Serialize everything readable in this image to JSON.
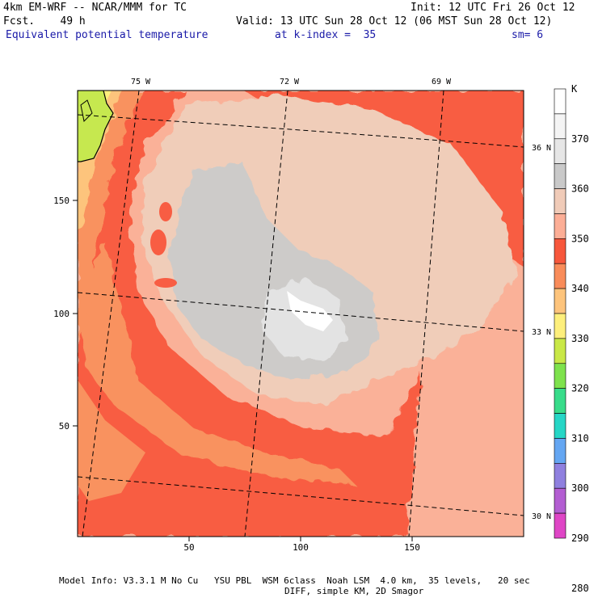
{
  "header": {
    "model_line": "4km EM-WRF -- NCAR/MMM for TC",
    "fcst_line": "Fcst.    49 h",
    "init_line": "Init: 12 UTC Fri 26 Oct 12",
    "valid_line": "Valid: 13 UTC Sun 28 Oct 12 (06 MST Sun 28 Oct 12)",
    "field_name": "Equivalent potential temperature",
    "level_line": "at k-index =  35",
    "smooth_line": "sm= 6"
  },
  "map": {
    "longitude_labels": [
      "75 W",
      "72 W",
      "69 W"
    ],
    "latitude_labels": [
      "36 N",
      "33 N",
      "30 N"
    ],
    "x_ticks": [
      50,
      100,
      150
    ],
    "y_ticks": [
      50,
      100,
      150
    ],
    "grid_extent": {
      "x": [
        0,
        200
      ],
      "y": [
        0,
        195
      ]
    },
    "storm_center_grid": [
      100,
      100
    ]
  },
  "colorbar": {
    "unit": "K",
    "labels": [
      "280",
      "290",
      "300",
      "310",
      "320",
      "330",
      "340",
      "350",
      "360",
      "370"
    ],
    "colors": [
      "#ffffff",
      "#f4f4f4",
      "#e6e6e6",
      "#c9c9c9",
      "#f0cbb8",
      "#fcae96",
      "#f7573c",
      "#f98c5a",
      "#fdc47c",
      "#fdef7c",
      "#c9e847",
      "#7ee24d",
      "#38dc8a",
      "#26d6c6",
      "#64a6f2",
      "#8f80df",
      "#b35ed2",
      "#df46c6"
    ],
    "field_colors": {
      "white": "#ffffff",
      "light_gray": "#e3e3e3",
      "gray": "#cdcbc9",
      "beige": "#f0cdb9",
      "salmon": "#fab198",
      "red": "#f85d43",
      "orange": "#f9925f",
      "light_orange": "#fdc47c",
      "yellow": "#fdef7c",
      "lime": "#c6e84f"
    }
  },
  "footer": {
    "line1": "Model Info: V3.3.1 M No Cu   YSU PBL  WSM 6class  Noah LSM  4.0 km,  35 levels,   20 sec",
    "line2": "DIFF, simple KM, 2D Smagor"
  }
}
